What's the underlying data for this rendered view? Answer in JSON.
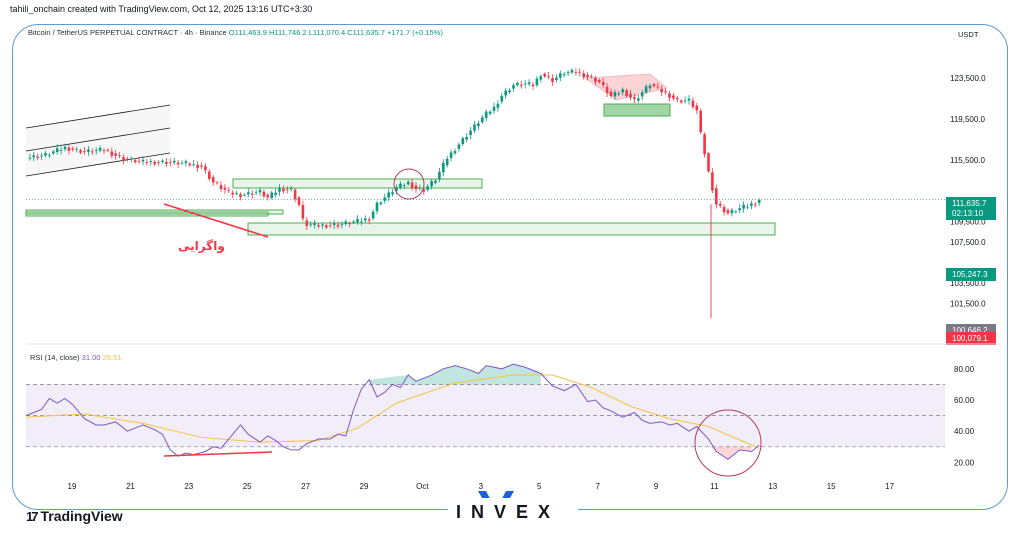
{
  "header": {
    "credit": "tahili_onchain created with TradingView.com, Oct 12, 2025 13:16 UTC+3:30",
    "symbol": "Bitcoin / TetherUS PERPETUAL CONTRACT · 4h · Binance",
    "ohlc": "O111,463.9  H111,746.2  L111,070.4  C111,635.7  +171.7 (+0.15%)",
    "currency": "USDT"
  },
  "branding": {
    "tv": "TradingView",
    "invex": "INVEX"
  },
  "colors": {
    "up": "#089981",
    "down": "#f23645",
    "rsi_line": "#7e57c2",
    "rsi_ma": "#f5c242",
    "zone": "#4caf50",
    "annotation": "#f23645",
    "last_price": "#089981",
    "low_tag": "#f23645",
    "frame": "#5b9bd5"
  },
  "chart_data": {
    "type": "candlestick",
    "price_axis": {
      "ticks": [
        123500,
        119500,
        115500,
        109500,
        107500,
        103500,
        101500
      ],
      "tick_labels": [
        "123,500.0",
        "119,500.0",
        "115,500.0",
        "109,500.0",
        "107,500.0",
        "103,500.0",
        "101,500.0"
      ],
      "last_price": "111,635.7",
      "countdown": "02:13:10",
      "marker_green": "105,247.3",
      "marker_gray": "100,646.2",
      "marker_red": "100,079.1"
    },
    "time_axis": {
      "labels": [
        "19",
        "21",
        "23",
        "25",
        "27",
        "29",
        "Oct",
        "3",
        "5",
        "7",
        "9",
        "11",
        "13",
        "15",
        "17"
      ]
    },
    "price_path": [
      [
        0,
        115700
      ],
      [
        5,
        116000
      ],
      [
        10,
        116700
      ],
      [
        15,
        116300
      ],
      [
        20,
        116500
      ],
      [
        25,
        115600
      ],
      [
        30,
        115300
      ],
      [
        35,
        115300
      ],
      [
        40,
        115200
      ],
      [
        45,
        114900
      ],
      [
        48,
        113300
      ],
      [
        52,
        112300
      ],
      [
        55,
        112100
      ],
      [
        60,
        112400
      ],
      [
        62,
        111800
      ],
      [
        65,
        112700
      ],
      [
        68,
        112600
      ],
      [
        70,
        111100
      ],
      [
        71,
        109600
      ],
      [
        72,
        109200
      ],
      [
        75,
        109100
      ],
      [
        80,
        109200
      ],
      [
        85,
        109500
      ],
      [
        88,
        109800
      ],
      [
        90,
        111200
      ],
      [
        95,
        112800
      ],
      [
        98,
        113300
      ],
      [
        100,
        112700
      ],
      [
        102,
        112600
      ],
      [
        105,
        113600
      ],
      [
        108,
        115700
      ],
      [
        112,
        117500
      ],
      [
        115,
        118800
      ],
      [
        118,
        120000
      ],
      [
        120,
        120600
      ],
      [
        122,
        121800
      ],
      [
        125,
        122800
      ],
      [
        128,
        122900
      ],
      [
        130,
        122800
      ],
      [
        132,
        123900
      ],
      [
        135,
        123300
      ],
      [
        138,
        124000
      ],
      [
        141,
        124100
      ],
      [
        145,
        123500
      ],
      [
        147,
        123100
      ],
      [
        150,
        121700
      ],
      [
        153,
        122300
      ],
      [
        156,
        121300
      ],
      [
        160,
        122900
      ],
      [
        163,
        122200
      ],
      [
        165,
        121800
      ],
      [
        167,
        121300
      ],
      [
        170,
        121300
      ],
      [
        172,
        120300
      ],
      [
        173,
        118000
      ],
      [
        175,
        114300
      ],
      [
        177,
        111200
      ],
      [
        180,
        110300
      ],
      [
        184,
        110900
      ],
      [
        187,
        111300
      ],
      [
        188,
        111636
      ]
    ],
    "wick_low": "100,079.1",
    "zones": [
      {
        "from": 116000,
        "to": 116200,
        "label": ""
      },
      {
        "from": 111650,
        "to": 112100,
        "label": ""
      },
      {
        "from": 111200,
        "to": 111600,
        "label": ""
      },
      {
        "from": 119900,
        "to": 120400,
        "label": ""
      },
      {
        "from": 109500,
        "to": 110100,
        "label": ""
      }
    ],
    "annotation_text": "واگرایی",
    "rsi": {
      "title": "RSI (14, close)",
      "value": "31.00",
      "ma_value": "29.51",
      "levels": [
        70,
        50,
        30
      ],
      "tick_labels": [
        "80.00",
        "60.00",
        "40.00",
        "20.00"
      ],
      "path": [
        [
          0,
          50
        ],
        [
          4,
          54
        ],
        [
          6,
          61
        ],
        [
          8,
          58
        ],
        [
          10,
          61
        ],
        [
          12,
          57
        ],
        [
          15,
          48
        ],
        [
          18,
          44
        ],
        [
          20,
          44
        ],
        [
          23,
          46
        ],
        [
          26,
          40
        ],
        [
          28,
          42
        ],
        [
          30,
          44
        ],
        [
          33,
          41
        ],
        [
          35,
          38
        ],
        [
          37,
          28
        ],
        [
          39,
          24
        ],
        [
          41,
          26
        ],
        [
          43,
          25
        ],
        [
          46,
          27
        ],
        [
          48,
          30
        ],
        [
          50,
          29
        ],
        [
          53,
          38
        ],
        [
          55,
          44
        ],
        [
          57,
          38
        ],
        [
          60,
          33
        ],
        [
          62,
          37
        ],
        [
          64,
          34
        ],
        [
          66,
          30
        ],
        [
          68,
          28
        ],
        [
          70,
          28
        ],
        [
          72,
          32
        ],
        [
          75,
          35
        ],
        [
          78,
          35
        ],
        [
          80,
          38
        ],
        [
          82,
          37
        ],
        [
          84,
          54
        ],
        [
          86,
          67
        ],
        [
          88,
          73
        ],
        [
          90,
          62
        ],
        [
          92,
          65
        ],
        [
          94,
          70
        ],
        [
          96,
          68
        ],
        [
          98,
          76
        ],
        [
          100,
          72
        ],
        [
          104,
          76
        ],
        [
          107,
          80
        ],
        [
          110,
          82
        ],
        [
          113,
          80
        ],
        [
          116,
          77
        ],
        [
          118,
          82
        ],
        [
          122,
          80
        ],
        [
          125,
          83
        ],
        [
          128,
          81
        ],
        [
          130,
          79
        ],
        [
          132,
          77
        ],
        [
          135,
          69
        ],
        [
          138,
          66
        ],
        [
          141,
          70
        ],
        [
          144,
          59
        ],
        [
          146,
          60
        ],
        [
          148,
          55
        ],
        [
          150,
          53
        ],
        [
          153,
          49
        ],
        [
          156,
          52
        ],
        [
          158,
          47
        ],
        [
          160,
          45
        ],
        [
          163,
          46
        ],
        [
          165,
          44
        ],
        [
          167,
          45
        ],
        [
          170,
          40
        ],
        [
          172,
          43
        ],
        [
          175,
          35
        ],
        [
          177,
          27
        ],
        [
          180,
          22
        ],
        [
          183,
          28
        ],
        [
          186,
          27
        ],
        [
          188,
          31
        ]
      ],
      "ma_path": [
        [
          0,
          49
        ],
        [
          15,
          51
        ],
        [
          30,
          45
        ],
        [
          45,
          36
        ],
        [
          60,
          33
        ],
        [
          75,
          34
        ],
        [
          85,
          42
        ],
        [
          95,
          58
        ],
        [
          110,
          71
        ],
        [
          125,
          76
        ],
        [
          135,
          76
        ],
        [
          145,
          68
        ],
        [
          155,
          56
        ],
        [
          165,
          48
        ],
        [
          175,
          43
        ],
        [
          188,
          29
        ]
      ]
    }
  }
}
